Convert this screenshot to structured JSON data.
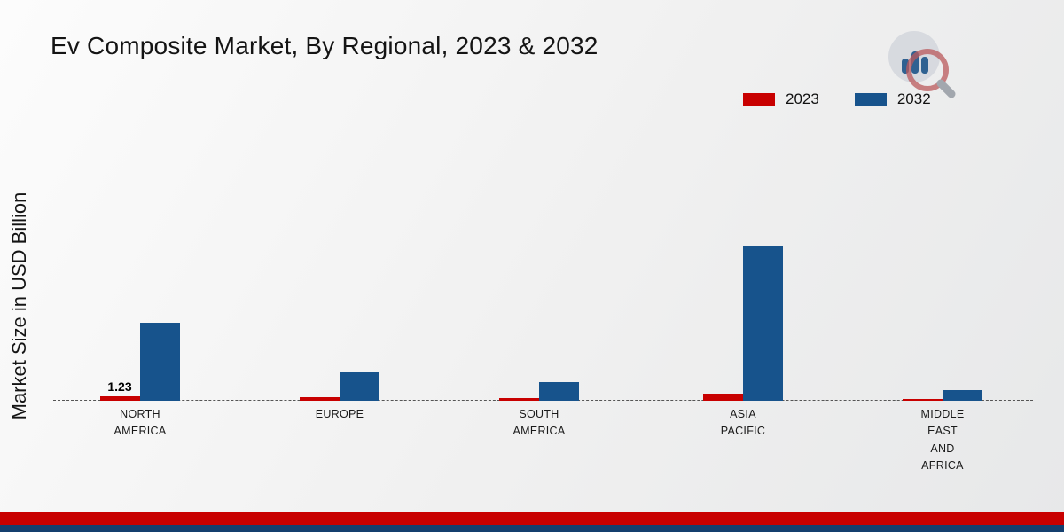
{
  "title": "Ev Composite Market, By Regional, 2023 & 2032",
  "ylabel": "Market Size in USD Billion",
  "colors": {
    "series_2023": "#c80000",
    "series_2032": "#17538c",
    "footer_red_stripe": "#c80000",
    "footer_navy_stripe": "#143f6e"
  },
  "chart_data": {
    "type": "bar",
    "title": "Ev Composite Market, By Regional, 2023 & 2032",
    "xlabel": "",
    "ylabel": "Market Size in USD Billion",
    "categories": [
      "NORTH\nAMERICA",
      "EUROPE",
      "SOUTH\nAMERICA",
      "ASIA\nPACIFIC",
      "MIDDLE\nEAST\nAND\nAFRICA"
    ],
    "series": [
      {
        "name": "2023",
        "color": "#c80000",
        "values": [
          1.23,
          1.0,
          0.7,
          2.0,
          0.5
        ]
      },
      {
        "name": "2032",
        "color": "#17538c",
        "values": [
          21.5,
          8.0,
          5.0,
          42.5,
          2.8
        ]
      }
    ],
    "annotations": [
      {
        "series": "2023",
        "category_index": 0,
        "text": "1.23"
      }
    ],
    "ylim": [
      0,
      45
    ],
    "grid": false,
    "legend_position": "top-right",
    "baseline_style": "dashed"
  }
}
